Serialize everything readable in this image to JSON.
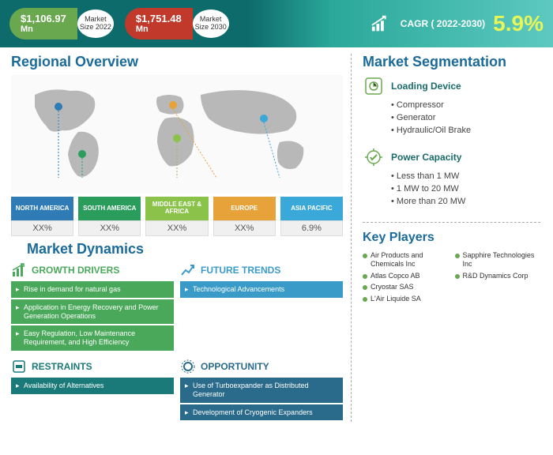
{
  "header": {
    "pill1": {
      "value": "$1,106.97",
      "unit": "Mn",
      "label1": "Market",
      "label2": "Size 2022",
      "bg": "#6aa84f"
    },
    "pill2": {
      "value": "$1,751.48",
      "unit": "Mn",
      "label1": "Market",
      "label2": "Size 2030",
      "bg": "#c0392b"
    },
    "cagr_label": "CAGR ( 2022-2030)",
    "cagr_value": "5.9%"
  },
  "regional": {
    "title": "Regional Overview",
    "regions": [
      {
        "name": "NORTH AMERICA",
        "pct": "XX%",
        "color": "#2e7bb6"
      },
      {
        "name": "SOUTH AMERICA",
        "pct": "XX%",
        "color": "#2a9d5c"
      },
      {
        "name": "MIDDLE EAST & AFRICA",
        "pct": "XX%",
        "color": "#8bc34a"
      },
      {
        "name": "EUROPE",
        "pct": "XX%",
        "color": "#e8a23a"
      },
      {
        "name": "ASIA PACIFIC",
        "pct": "6.9%",
        "color": "#3aa8d8"
      }
    ]
  },
  "dynamics": {
    "title": "Market Dynamics",
    "blocks": [
      {
        "head": "GROWTH DRIVERS",
        "head_color": "#4aa85a",
        "item_bg": "#4aa85a",
        "items": [
          "Rise in demand for natural gas",
          "Application in Energy Recovery and Power Generation Operations",
          "Easy Regulation, Low Maintenance Requirement, and High Efficiency"
        ]
      },
      {
        "head": "FUTURE TRENDS",
        "head_color": "#3a9bc8",
        "item_bg": "#3a9bc8",
        "items": [
          "Technological Advancements"
        ]
      },
      {
        "head": "RESTRAINTS",
        "head_color": "#1a7a7a",
        "item_bg": "#1a7a7a",
        "items": [
          "Availability of Alternatives"
        ]
      },
      {
        "head": "OPPORTUNITY",
        "head_color": "#2a6a8a",
        "item_bg": "#2a6a8a",
        "items": [
          "Use of Turboexpander as Distributed Generator",
          "Development of Cryogenic Expanders"
        ]
      }
    ]
  },
  "segmentation": {
    "title": "Market Segmentation",
    "groups": [
      {
        "title": "Loading Device",
        "items": [
          "Compressor",
          "Generator",
          "Hydraulic/Oil Brake"
        ]
      },
      {
        "title": "Power Capacity",
        "items": [
          "Less than 1 MW",
          "1 MW to 20 MW",
          "More than 20 MW"
        ]
      }
    ]
  },
  "keyplayers": {
    "title": "Key Players",
    "items": [
      "Air Products and Chemicals Inc",
      "Sapphire Technologies Inc",
      "Atlas Copco AB",
      "R&D Dynamics Corp",
      "Cryostar SAS",
      "",
      "L'Air Liquide SA",
      ""
    ]
  },
  "colors": {
    "map_land": "#b8b8b8"
  }
}
